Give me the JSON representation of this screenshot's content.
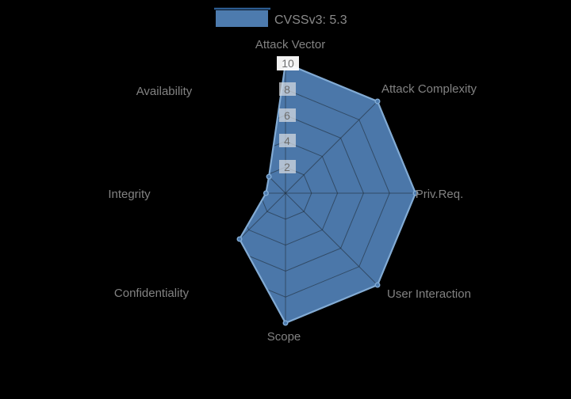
{
  "legend": {
    "label": "CVSSv3: 5.3",
    "swatch_color": "#4d7bae",
    "swatch_border_color": "#79a4cd",
    "swatch_topline_color": "#2d5d92"
  },
  "chart_data": {
    "type": "radar",
    "title": "CVSSv3: 5.3",
    "categories": [
      "Attack Vector",
      "Attack Complexity",
      "Priv.Req.",
      "User Interaction",
      "Scope",
      "Confidentiality",
      "Integrity",
      "Availability"
    ],
    "series": [
      {
        "name": "CVSSv3: 5.3",
        "values": [
          10,
          10,
          10,
          10,
          10,
          5,
          1.5,
          1.8
        ]
      }
    ],
    "rmax": 10,
    "ring_step": 2,
    "ticks": [
      10,
      8,
      6,
      4,
      2
    ],
    "legend_position": "top-center",
    "grid_visible_only_over_fill": true,
    "colors": {
      "fill": "#4d7bae",
      "outline": "#82abd4",
      "grid": "#1e2832",
      "background": "#000000",
      "axis_label": "#828282",
      "tick_label": "#6d6d6d"
    }
  }
}
